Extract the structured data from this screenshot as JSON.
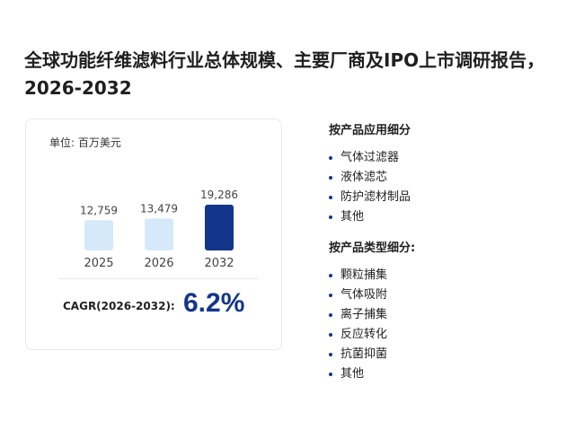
{
  "title": "全球功能纤维滤料行业总体规模、主要厂商及IPO上市调研报告，2026-2032",
  "chart": {
    "unit_label": "单位: 百万美元",
    "cagr_label": "CAGR(2026-2032):",
    "cagr_value": "6.2%"
  },
  "chart_data": {
    "type": "bar",
    "categories": [
      "2025",
      "2026",
      "2032"
    ],
    "values": [
      12759,
      13479,
      19286
    ],
    "value_labels": [
      "12,759",
      "13,479",
      "19,286"
    ],
    "ylim": [
      0,
      19286
    ],
    "bar_colors": [
      "#d6e9fb",
      "#d6e9fb",
      "#14368a"
    ]
  },
  "application": {
    "heading": "按产品应用细分",
    "items": [
      "气体过滤器",
      "液体滤芯",
      "防护滤材制品",
      "其他"
    ]
  },
  "product_type": {
    "heading": "按产品类型细分:",
    "items": [
      "颗粒捕集",
      "气体吸附",
      "离子捕集",
      "反应转化",
      "抗菌抑菌",
      "其他"
    ]
  },
  "colors": {
    "accent": "#14368a",
    "bar_light": "#d6e9fb",
    "bullet": "#14368a"
  }
}
